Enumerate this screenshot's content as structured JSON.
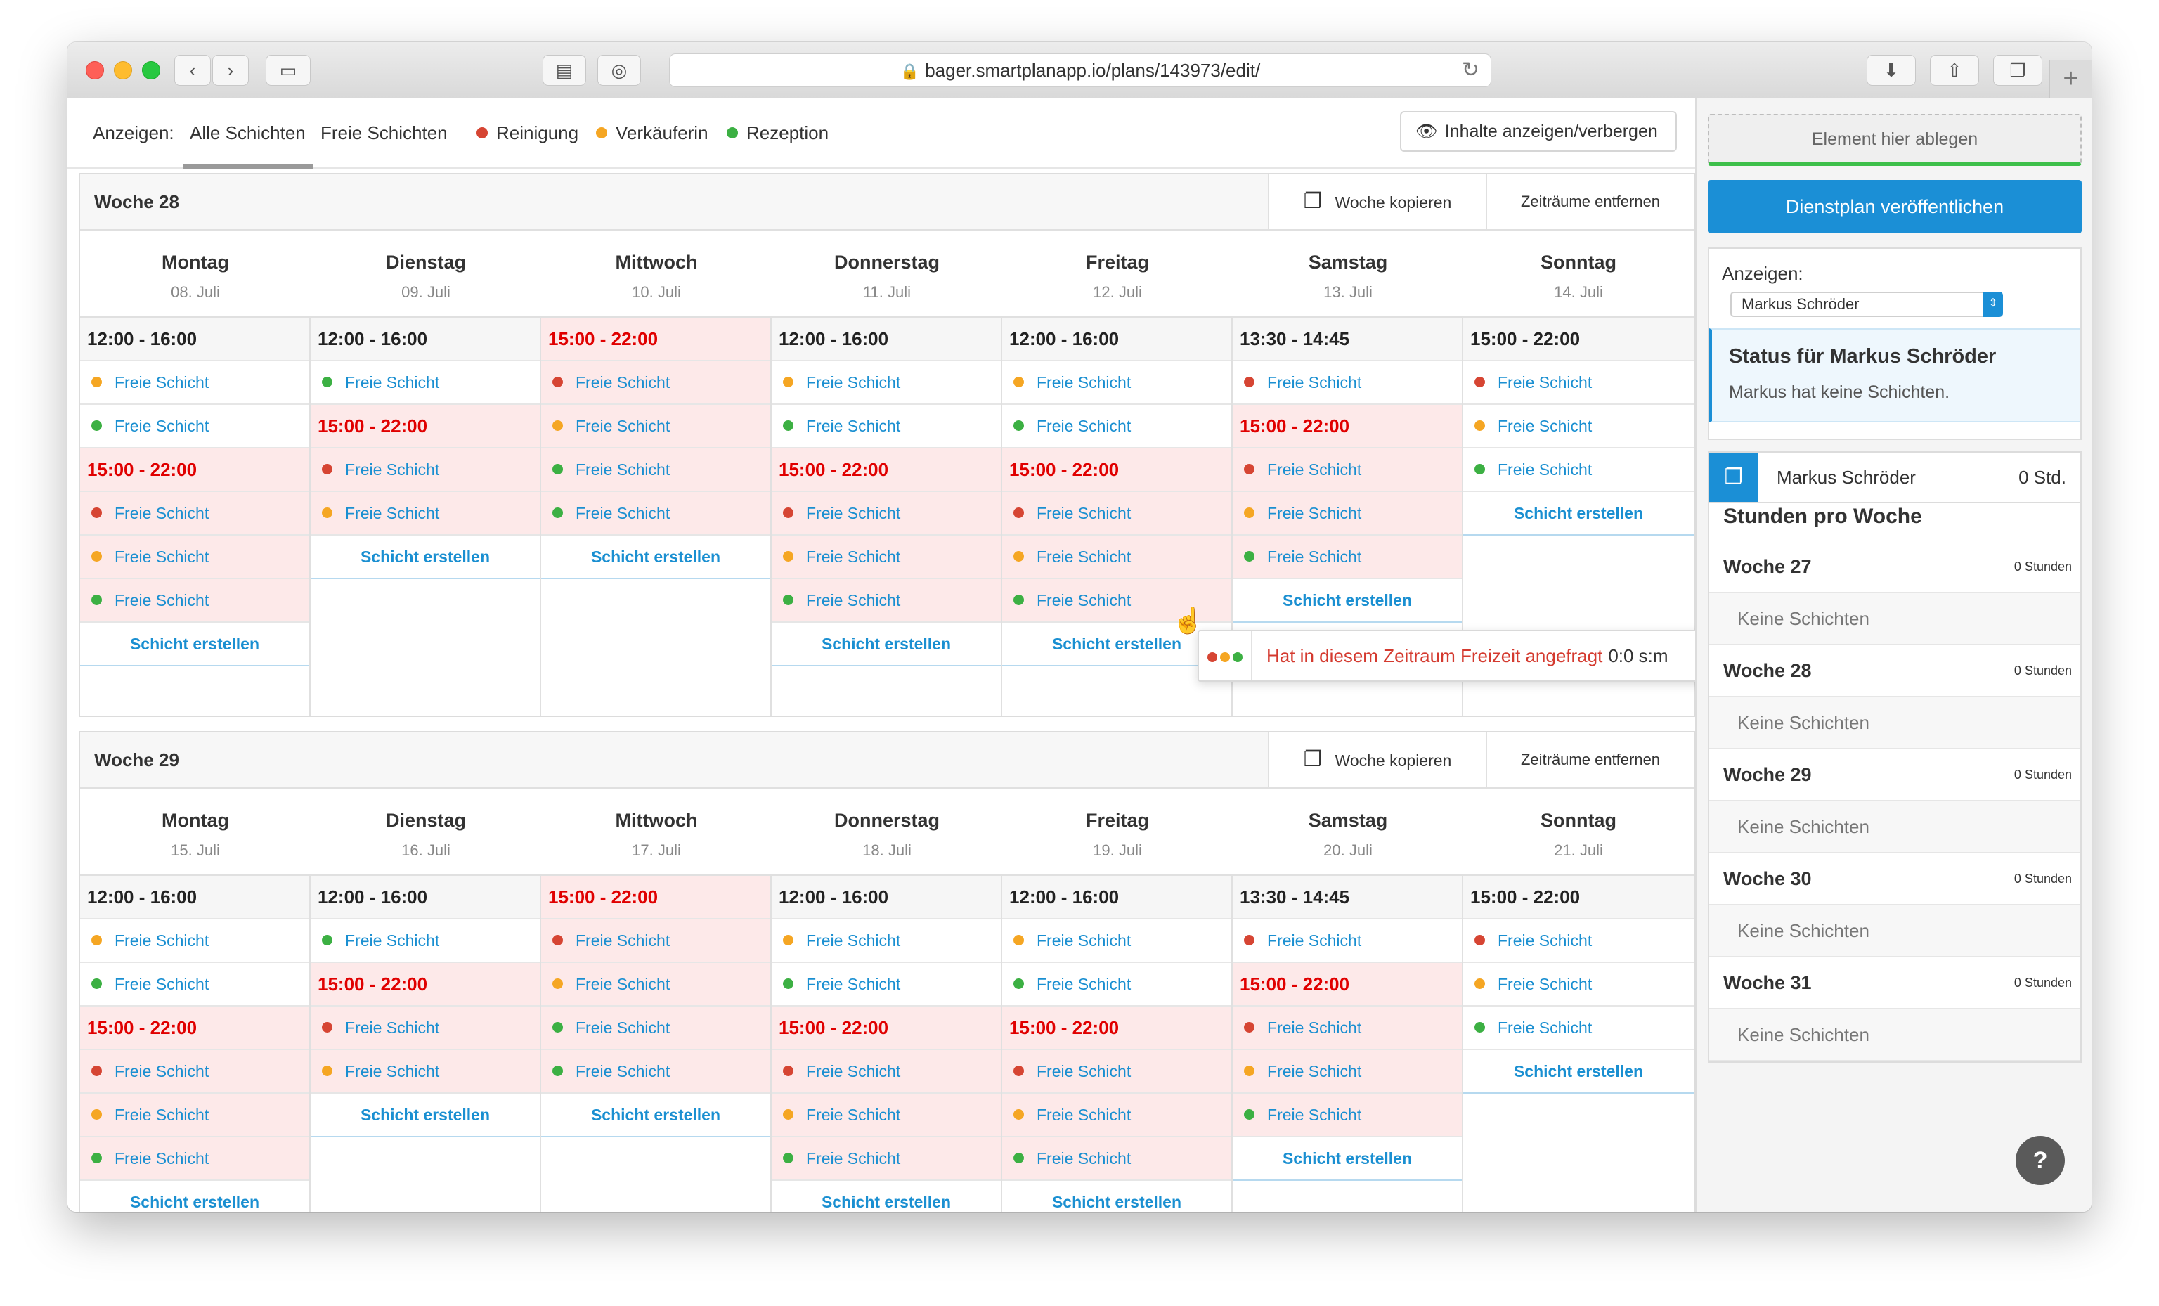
{
  "browser": {
    "url": "bager.smartplanapp.io/plans/143973/edit/",
    "back_icon": "chevron-left",
    "forward_icon": "chevron-right",
    "sidebar_icon": "sidebar",
    "reload_icon": "reload",
    "download_icon": "download",
    "share_icon": "share",
    "tabs_icon": "tabs",
    "newtab_icon": "plus"
  },
  "filter": {
    "label": "Anzeigen:",
    "all": "Alle Schichten",
    "free": "Freie Schichten",
    "roles": [
      {
        "name": "Reinigung",
        "color": "#d64533"
      },
      {
        "name": "Verkäuferin",
        "color": "#f5a623"
      },
      {
        "name": "Rezeption",
        "color": "#3cb043"
      }
    ],
    "toggle": "Inhalte anzeigen/verbergen"
  },
  "week_actions": {
    "copy": "Woche kopieren",
    "remove": "Zeiträume entfernen"
  },
  "shift_label": "Freie Schicht",
  "create_label": "Schicht erstellen",
  "weeks": [
    {
      "title": "Woche 28",
      "days": [
        {
          "name": "Montag",
          "date": "08. Juli"
        },
        {
          "name": "Dienstag",
          "date": "09. Juli"
        },
        {
          "name": "Mittwoch",
          "date": "10. Juli"
        },
        {
          "name": "Donnerstag",
          "date": "11. Juli"
        },
        {
          "name": "Freitag",
          "date": "12. Juli"
        },
        {
          "name": "Samstag",
          "date": "13. Juli"
        },
        {
          "name": "Sonntag",
          "date": "14. Juli"
        }
      ]
    },
    {
      "title": "Woche 29",
      "days": [
        {
          "name": "Montag",
          "date": "15. Juli"
        },
        {
          "name": "Dienstag",
          "date": "16. Juli"
        },
        {
          "name": "Mittwoch",
          "date": "17. Juli"
        },
        {
          "name": "Donnerstag",
          "date": "18. Juli"
        },
        {
          "name": "Freitag",
          "date": "19. Juli"
        },
        {
          "name": "Samstag",
          "date": "20. Juli"
        },
        {
          "name": "Sonntag",
          "date": "21. Juli"
        }
      ]
    }
  ],
  "columns": [
    {
      "time": "12:00 - 16:00",
      "red": false,
      "rows": [
        [
          "s",
          "o",
          0
        ],
        [
          "s",
          "g",
          0
        ],
        [
          "t",
          "15:00 - 22:00",
          1
        ],
        [
          "s",
          "r",
          1
        ],
        [
          "s",
          "o",
          1
        ],
        [
          "s",
          "g",
          1
        ],
        [
          "c"
        ]
      ]
    },
    {
      "time": "12:00 - 16:00",
      "red": false,
      "rows": [
        [
          "s",
          "g",
          0
        ],
        [
          "t",
          "15:00 - 22:00",
          1
        ],
        [
          "s",
          "r",
          1
        ],
        [
          "s",
          "o",
          1
        ],
        [
          "c"
        ]
      ]
    },
    {
      "time": "15:00 - 22:00",
      "red": true,
      "rows": [
        [
          "s",
          "r",
          1
        ],
        [
          "s",
          "o",
          1
        ],
        [
          "s",
          "g",
          1
        ],
        [
          "s",
          "g",
          1
        ],
        [
          "c"
        ]
      ]
    },
    {
      "time": "12:00 - 16:00",
      "red": false,
      "rows": [
        [
          "s",
          "o",
          0
        ],
        [
          "s",
          "g",
          0
        ],
        [
          "t",
          "15:00 - 22:00",
          1
        ],
        [
          "s",
          "r",
          1
        ],
        [
          "s",
          "o",
          1
        ],
        [
          "s",
          "g",
          1
        ],
        [
          "c"
        ]
      ]
    },
    {
      "time": "12:00 - 16:00",
      "red": false,
      "rows": [
        [
          "s",
          "o",
          0
        ],
        [
          "s",
          "g",
          0
        ],
        [
          "t",
          "15:00 - 22:00",
          1
        ],
        [
          "s",
          "r",
          1
        ],
        [
          "s",
          "o",
          1
        ],
        [
          "s",
          "g",
          1
        ],
        [
          "c"
        ]
      ]
    },
    {
      "time": "13:30 - 14:45",
      "red": false,
      "rows": [
        [
          "s",
          "r",
          0
        ],
        [
          "t",
          "15:00 - 22:00",
          1
        ],
        [
          "s",
          "r",
          1
        ],
        [
          "s",
          "o",
          1
        ],
        [
          "s",
          "g",
          1
        ],
        [
          "c"
        ]
      ]
    },
    {
      "time": "15:00 - 22:00",
      "red": false,
      "rows": [
        [
          "s",
          "r",
          0
        ],
        [
          "s",
          "o",
          0
        ],
        [
          "s",
          "g",
          0
        ],
        [
          "c"
        ]
      ]
    }
  ],
  "tooltip": {
    "message": "Hat in diesem Zeitraum Freizeit angefragt",
    "value": "0:0 s:m"
  },
  "sidebar": {
    "drop": "Element hier ablegen",
    "publish": "Dienstplan veröffentlichen",
    "show_label": "Anzeigen:",
    "selected_user": "Markus Schröder",
    "status_title": "Status für Markus Schröder",
    "status_msg": "Markus hat keine Schichten.",
    "user_name": "Markus Schröder",
    "user_hours": "0 Std.",
    "hours_title": "Stunden pro Woche",
    "week_rows": [
      {
        "week": "Woche 27",
        "hours": "0 Stunden",
        "shifts": "Keine Schichten"
      },
      {
        "week": "Woche 28",
        "hours": "0 Stunden",
        "shifts": "Keine Schichten"
      },
      {
        "week": "Woche 29",
        "hours": "0 Stunden",
        "shifts": "Keine Schichten"
      },
      {
        "week": "Woche 30",
        "hours": "0 Stunden",
        "shifts": "Keine Schichten"
      },
      {
        "week": "Woche 31",
        "hours": "0 Stunden",
        "shifts": "Keine Schichten"
      }
    ],
    "help": "?"
  }
}
